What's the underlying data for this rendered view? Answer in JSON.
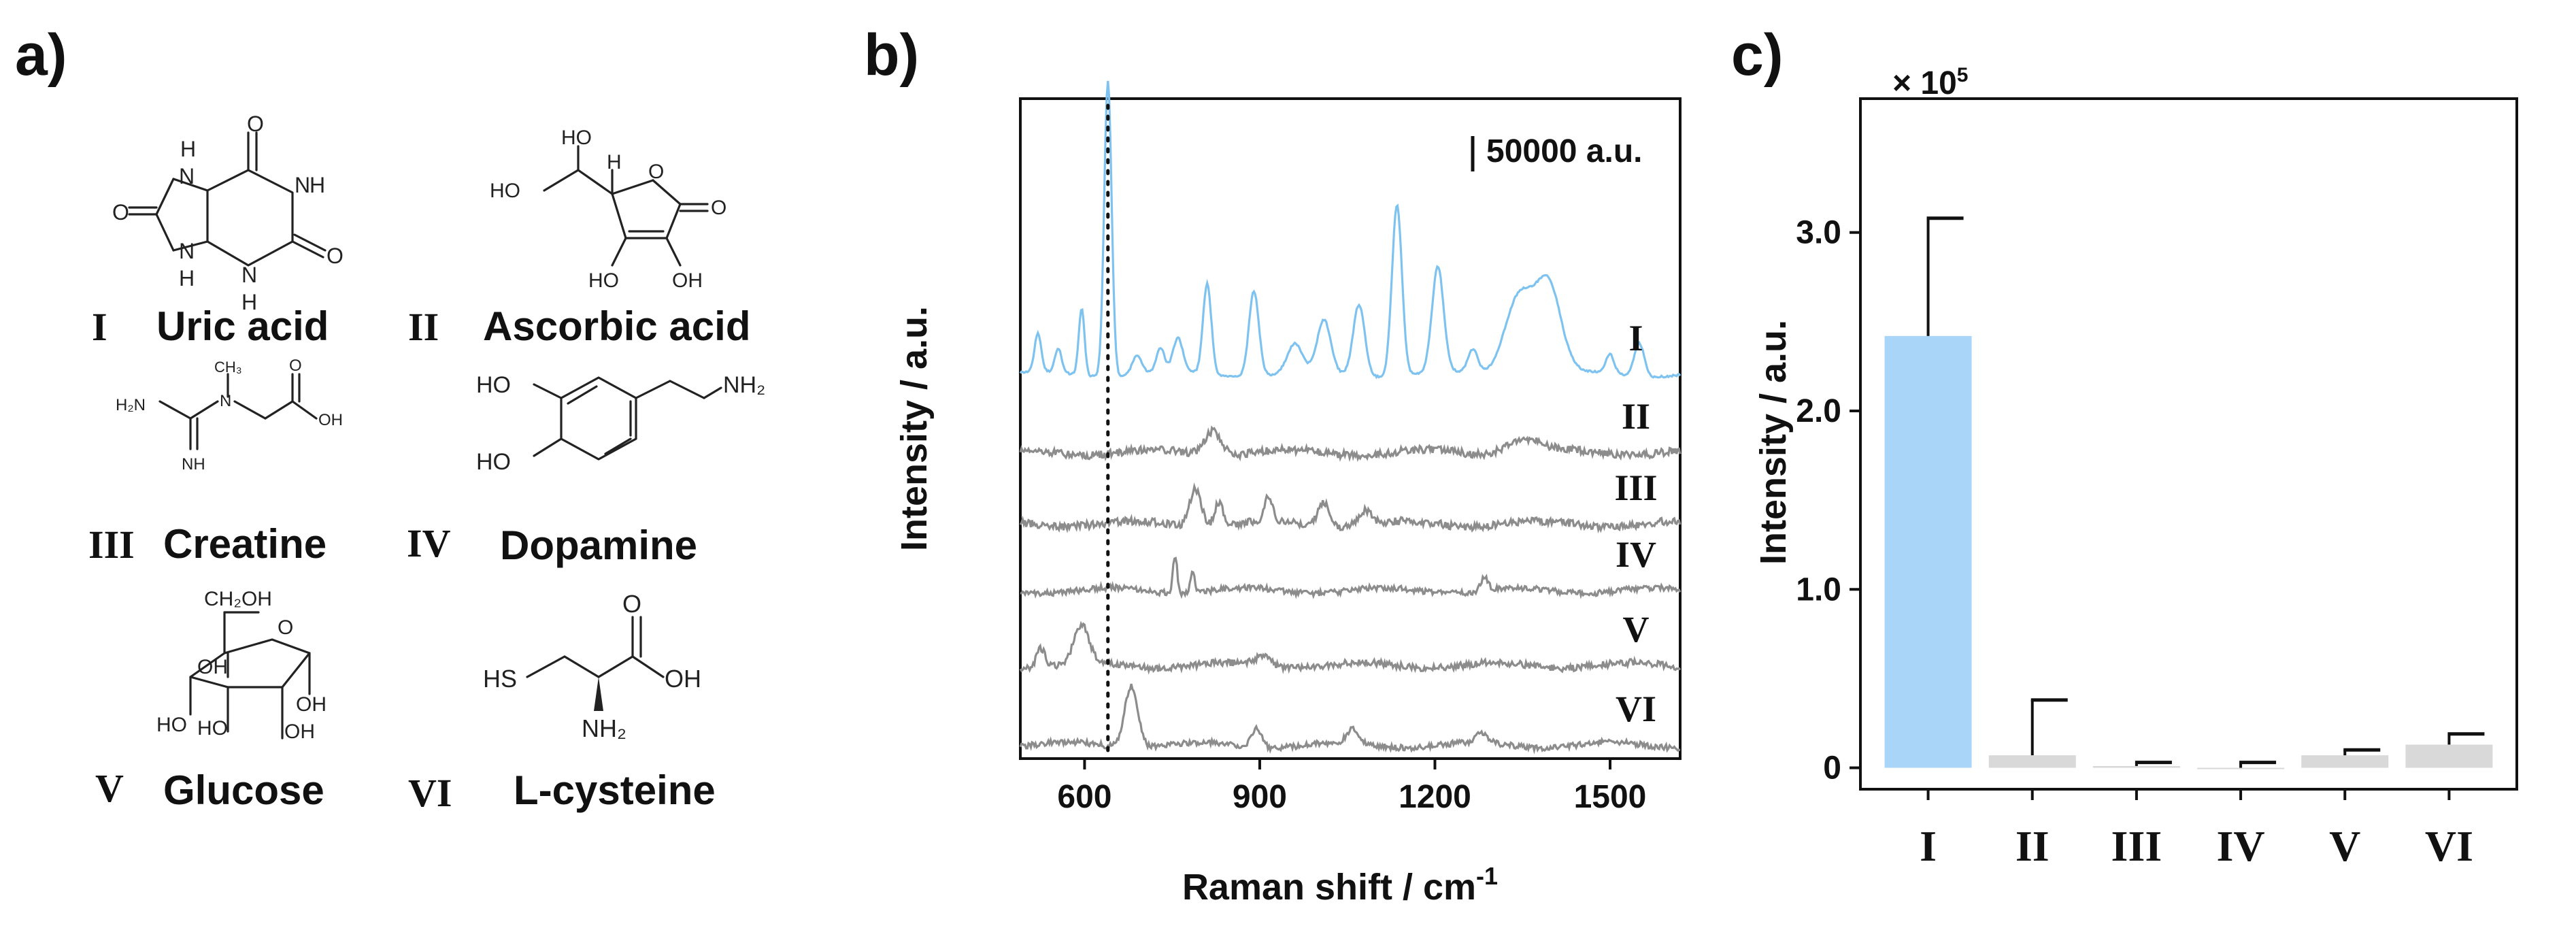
{
  "panels": {
    "a": "a)",
    "b": "b)",
    "c": "c)"
  },
  "compounds": [
    {
      "numeral": "I",
      "name": "Uric acid"
    },
    {
      "numeral": "II",
      "name": "Ascorbic acid"
    },
    {
      "numeral": "III",
      "name": "Creatine"
    },
    {
      "numeral": "IV",
      "name": "Dopamine"
    },
    {
      "numeral": "V",
      "name": "Glucose"
    },
    {
      "numeral": "VI",
      "name": "L-cysteine"
    }
  ],
  "structures": {
    "uric": {
      "o1": "O",
      "o2": "O",
      "o3": "O",
      "h1": "H",
      "h2": "H",
      "n1": "N",
      "n2": "N",
      "n3": "N",
      "n4": "N",
      "h3": "H",
      "h4": "H"
    },
    "ascorbic": {
      "ho1": "HO",
      "ho2": "HO",
      "ho3": "HO",
      "oh1": "OH",
      "h": "H",
      "o1": "O",
      "o2": "O"
    },
    "creatine": {
      "h2n": "H₂N",
      "nh": "NH",
      "n": "N",
      "ch3": "CH₃",
      "o": "O",
      "oh": "OH"
    },
    "dopamine": {
      "ho1": "HO",
      "ho2": "HO",
      "nh2": "NH₂"
    },
    "glucose": {
      "ch2oh": "CH₂OH",
      "o": "O",
      "oh1": "OH",
      "ho1": "HO",
      "ho2": "HO",
      "oh2": "OH",
      "oh3": "OH"
    },
    "cysteine": {
      "hs": "HS",
      "nh2": "NH₂",
      "o": "O",
      "oh": "OH"
    }
  },
  "chart_data": [
    {
      "type": "line",
      "title": "",
      "xlabel": "Raman shift / cm",
      "xlabel_superscript": "-1",
      "ylabel": "Intensity / a.u.",
      "xlim": [
        490,
        1620
      ],
      "x_ticks": [
        600,
        900,
        1200,
        1500
      ],
      "scale_bar_label": "50000 a.u.",
      "scale_bar_value": 50000,
      "reference_line_x": 640,
      "series": [
        {
          "name": "I",
          "color": "#7ec3f0",
          "baseline_offset": 0,
          "noise": 0.002,
          "peaks": [
            [
              520,
              0.08,
              8
            ],
            [
              555,
              0.05,
              8
            ],
            [
              595,
              0.14,
              7
            ],
            [
              640,
              0.62,
              9
            ],
            [
              690,
              0.04,
              12
            ],
            [
              730,
              0.05,
              10
            ],
            [
              760,
              0.07,
              12
            ],
            [
              810,
              0.19,
              10
            ],
            [
              890,
              0.18,
              12
            ],
            [
              960,
              0.06,
              18
            ],
            [
              1010,
              0.11,
              16
            ],
            [
              1070,
              0.15,
              14
            ],
            [
              1135,
              0.36,
              12
            ],
            [
              1205,
              0.22,
              14
            ],
            [
              1265,
              0.05,
              12
            ],
            [
              1345,
              0.17,
              35
            ],
            [
              1395,
              0.18,
              30
            ],
            [
              1500,
              0.04,
              10
            ],
            [
              1550,
              0.07,
              12
            ]
          ]
        },
        {
          "name": "II",
          "color": "#8c8c8c",
          "baseline_offset": 1,
          "noise": 0.008,
          "peaks": [
            [
              820,
              0.05,
              20
            ],
            [
              1350,
              0.03,
              40
            ]
          ]
        },
        {
          "name": "III",
          "color": "#8c8c8c",
          "baseline_offset": 2,
          "noise": 0.008,
          "peaks": [
            [
              790,
              0.08,
              14
            ],
            [
              830,
              0.05,
              10
            ],
            [
              915,
              0.05,
              10
            ],
            [
              1010,
              0.05,
              14
            ],
            [
              1080,
              0.03,
              16
            ]
          ]
        },
        {
          "name": "IV",
          "color": "#8c8c8c",
          "baseline_offset": 3,
          "noise": 0.006,
          "peaks": [
            [
              755,
              0.08,
              5
            ],
            [
              785,
              0.04,
              6
            ],
            [
              1285,
              0.03,
              8
            ]
          ]
        },
        {
          "name": "V",
          "color": "#8c8c8c",
          "baseline_offset": 4,
          "noise": 0.007,
          "peaks": [
            [
              525,
              0.04,
              10
            ],
            [
              595,
              0.08,
              18
            ],
            [
              905,
              0.02,
              20
            ]
          ]
        },
        {
          "name": "VI",
          "color": "#8c8c8c",
          "baseline_offset": 5,
          "noise": 0.006,
          "peaks": [
            [
              680,
              0.13,
              16
            ],
            [
              895,
              0.04,
              12
            ],
            [
              1060,
              0.03,
              14
            ],
            [
              1280,
              0.02,
              14
            ]
          ]
        }
      ]
    },
    {
      "type": "bar",
      "title": "",
      "xlabel": "",
      "ylabel": "Intensity / a.u.",
      "multiplier_label": "× 10",
      "multiplier_exponent": "5",
      "ylim": [
        -0.12,
        3.75
      ],
      "y_ticks": [
        "0",
        "1.0",
        "2.0",
        "3.0"
      ],
      "y_tick_values": [
        0,
        1.0,
        2.0,
        3.0
      ],
      "categories": [
        "I",
        "II",
        "III",
        "IV",
        "V",
        "VI"
      ],
      "values": [
        2.42,
        0.07,
        0.01,
        0.0,
        0.07,
        0.13
      ],
      "errors": [
        0.66,
        0.31,
        0.02,
        0.03,
        0.03,
        0.06
      ],
      "colors": [
        "#a9d6f8",
        "#d9d9d9",
        "#d9d9d9",
        "#d9d9d9",
        "#d9d9d9",
        "#d9d9d9"
      ]
    }
  ]
}
